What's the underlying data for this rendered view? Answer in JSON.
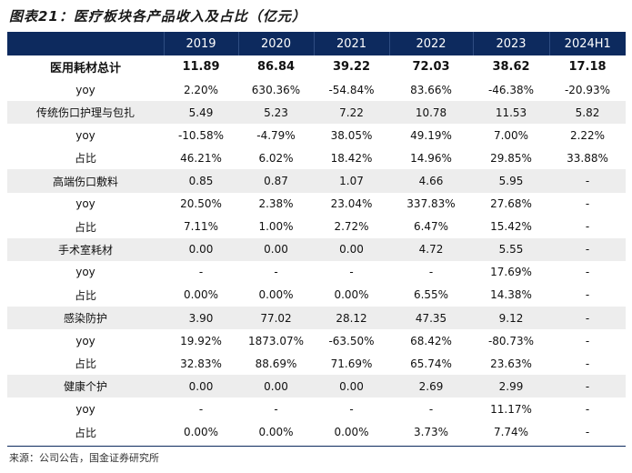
{
  "title": "图表21：医疗板块各产品收入及占比（亿元）",
  "columns": [
    "",
    "2019",
    "2020",
    "2021",
    "2022",
    "2023",
    "2024H1"
  ],
  "rows": [
    {
      "label": "医用耗材总计",
      "bold": true,
      "alt": false,
      "values": [
        "11.89",
        "86.84",
        "39.22",
        "72.03",
        "38.62",
        "17.18"
      ]
    },
    {
      "label": "yoy",
      "bold": false,
      "alt": false,
      "values": [
        "2.20%",
        "630.36%",
        "-54.84%",
        "83.66%",
        "-46.38%",
        "-20.93%"
      ]
    },
    {
      "label": "传统伤口护理与包扎",
      "bold": false,
      "alt": true,
      "values": [
        "5.49",
        "5.23",
        "7.22",
        "10.78",
        "11.53",
        "5.82"
      ]
    },
    {
      "label": "yoy",
      "bold": false,
      "alt": false,
      "values": [
        "-10.58%",
        "-4.79%",
        "38.05%",
        "49.19%",
        "7.00%",
        "2.22%"
      ]
    },
    {
      "label": "占比",
      "bold": false,
      "alt": false,
      "values": [
        "46.21%",
        "6.02%",
        "18.42%",
        "14.96%",
        "29.85%",
        "33.88%"
      ]
    },
    {
      "label": "高端伤口敷料",
      "bold": false,
      "alt": true,
      "values": [
        "0.85",
        "0.87",
        "1.07",
        "4.66",
        "5.95",
        "-"
      ]
    },
    {
      "label": "yoy",
      "bold": false,
      "alt": false,
      "values": [
        "20.50%",
        "2.38%",
        "23.04%",
        "337.83%",
        "27.68%",
        "-"
      ]
    },
    {
      "label": "占比",
      "bold": false,
      "alt": false,
      "values": [
        "7.11%",
        "1.00%",
        "2.72%",
        "6.47%",
        "15.42%",
        "-"
      ]
    },
    {
      "label": "手术室耗材",
      "bold": false,
      "alt": true,
      "values": [
        "0.00",
        "0.00",
        "0.00",
        "4.72",
        "5.55",
        "-"
      ]
    },
    {
      "label": "yoy",
      "bold": false,
      "alt": false,
      "values": [
        "-",
        "-",
        "-",
        "-",
        "17.69%",
        "-"
      ]
    },
    {
      "label": "占比",
      "bold": false,
      "alt": false,
      "values": [
        "0.00%",
        "0.00%",
        "0.00%",
        "6.55%",
        "14.38%",
        "-"
      ]
    },
    {
      "label": "感染防护",
      "bold": false,
      "alt": true,
      "values": [
        "3.90",
        "77.02",
        "28.12",
        "47.35",
        "9.12",
        "-"
      ]
    },
    {
      "label": "yoy",
      "bold": false,
      "alt": false,
      "values": [
        "19.92%",
        "1873.07%",
        "-63.50%",
        "68.42%",
        "-80.73%",
        "-"
      ]
    },
    {
      "label": "占比",
      "bold": false,
      "alt": false,
      "values": [
        "32.83%",
        "88.69%",
        "71.69%",
        "65.74%",
        "23.63%",
        "-"
      ]
    },
    {
      "label": "健康个护",
      "bold": false,
      "alt": true,
      "values": [
        "0.00",
        "0.00",
        "0.00",
        "2.69",
        "2.99",
        "-"
      ]
    },
    {
      "label": "yoy",
      "bold": false,
      "alt": false,
      "values": [
        "-",
        "-",
        "-",
        "-",
        "11.17%",
        "-"
      ]
    },
    {
      "label": "占比",
      "bold": false,
      "alt": false,
      "values": [
        "0.00%",
        "0.00%",
        "0.00%",
        "3.73%",
        "7.74%",
        "-"
      ]
    }
  ],
  "source": "来源：公司公告，国金证券研究所",
  "colors": {
    "header_bg": "#0d2a5e",
    "header_text": "#ffffff",
    "alt_row_bg": "#ededed"
  }
}
